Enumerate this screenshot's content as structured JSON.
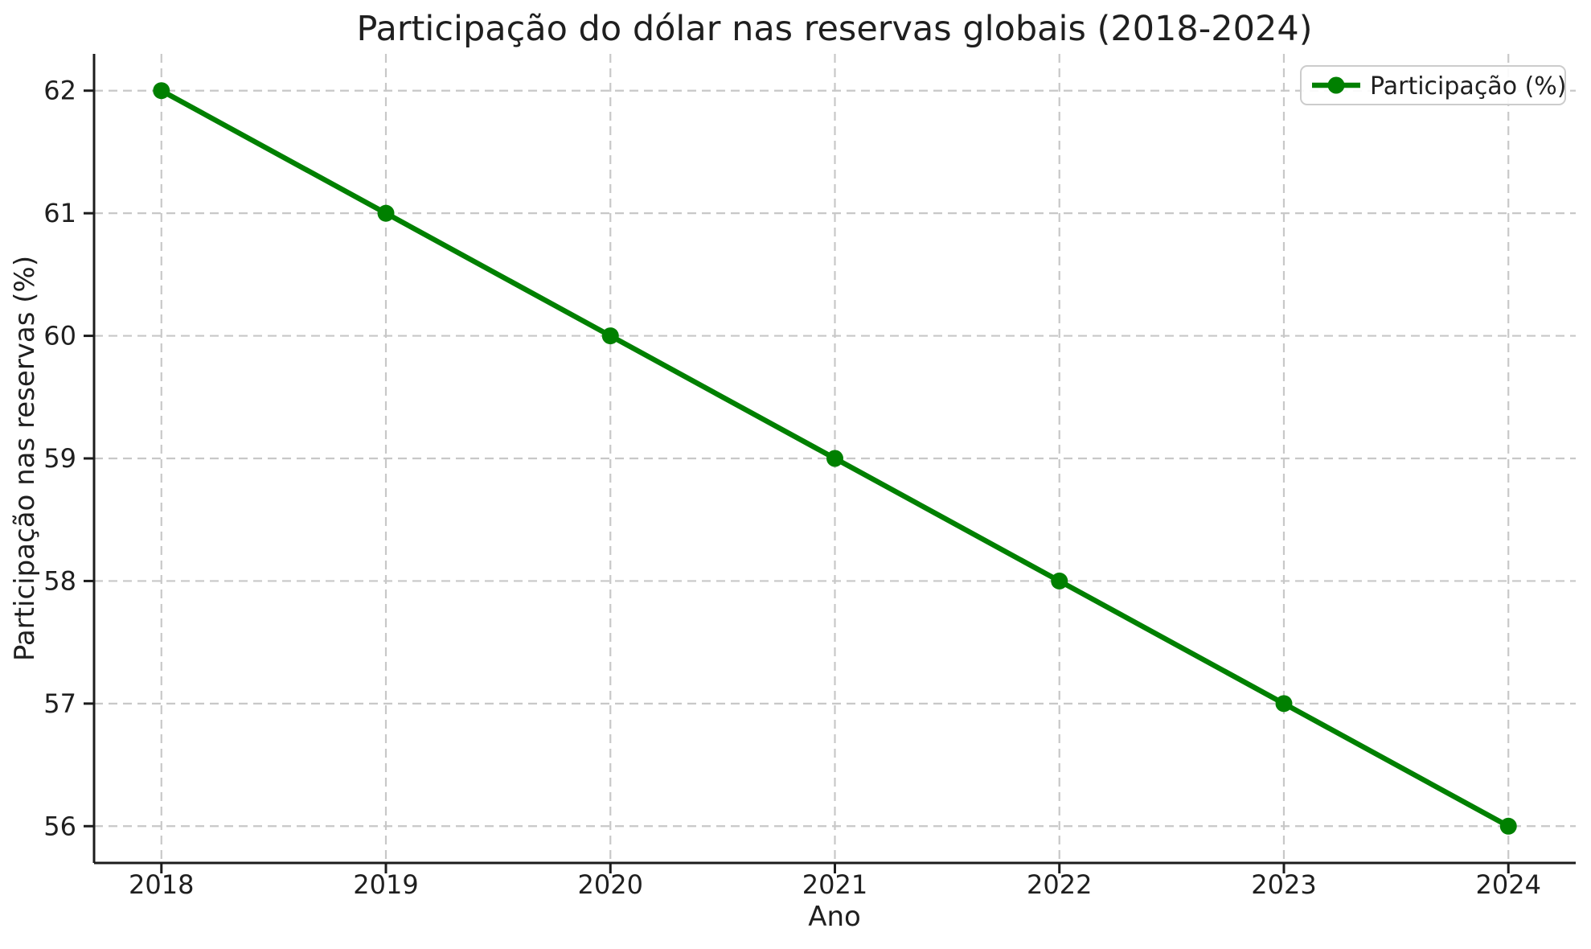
{
  "chart_data": {
    "type": "line",
    "title": "Participação do dólar nas reservas globais (2018-2024)",
    "xlabel": "Ano",
    "ylabel": "Participação nas reservas (%)",
    "x": [
      2018,
      2019,
      2020,
      2021,
      2022,
      2023,
      2024
    ],
    "series": [
      {
        "name": "Participação (%)",
        "values": [
          62,
          61,
          60,
          59,
          58,
          57,
          56
        ],
        "color": "#008000",
        "marker": "circle"
      }
    ],
    "xticks": [
      2018,
      2019,
      2020,
      2021,
      2022,
      2023,
      2024
    ],
    "yticks": [
      56,
      57,
      58,
      59,
      60,
      61,
      62
    ],
    "xlim": [
      2017.7,
      2024.3
    ],
    "ylim": [
      55.7,
      62.3
    ],
    "grid": true,
    "grid_style": "dashed",
    "legend_position": "top-right",
    "spines": [
      "left",
      "bottom"
    ]
  },
  "styles": {
    "line_color": "#008000",
    "grid_color": "#c8c8c8",
    "spine_color": "#1c1c1c",
    "text_color": "#1f1f1f",
    "legend_border": "#cccccc",
    "background": "#ffffff"
  }
}
